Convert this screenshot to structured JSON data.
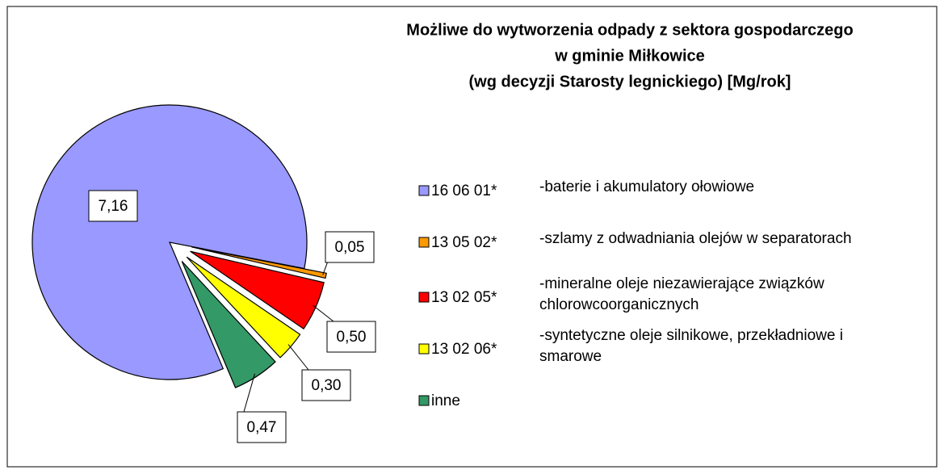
{
  "chart_data": {
    "type": "pie",
    "title": [
      "Możliwe do wytworzenia odpady z sektora gospodarczego",
      "w gminie Miłkowice",
      "(wg decyzji Starosty legnickiego) [Mg/rok]"
    ],
    "categories": [
      "16 06 01*",
      "13 05 02*",
      "13 02 05*",
      "13 02 06*",
      "inne"
    ],
    "descriptions": [
      [
        "-baterie i akumulatory ołowiowe"
      ],
      [
        "-szlamy z odwadniania olejów w separatorach"
      ],
      [
        "-mineralne oleje niezawierające związków",
        "chlorowcoorganicznych"
      ],
      [
        "-syntetyczne oleje silnikowe, przekładniowe i",
        "smarowe"
      ],
      []
    ],
    "values": [
      7.16,
      0.05,
      0.5,
      0.3,
      0.47
    ],
    "value_labels": [
      "7,16",
      "0,05",
      "0,50",
      "0,30",
      "0,47"
    ],
    "colors": [
      "#9999ff",
      "#ff9900",
      "#ff0000",
      "#ffff00",
      "#339966"
    ]
  }
}
